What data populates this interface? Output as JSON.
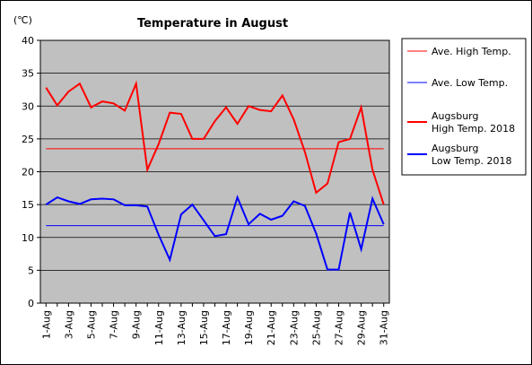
{
  "chart_data": {
    "type": "line",
    "title": "Temperature in August",
    "unit_label": "(℃)",
    "ylim": [
      0,
      40
    ],
    "y_ticks": [
      0,
      5,
      10,
      15,
      20,
      25,
      30,
      35,
      40
    ],
    "categories": [
      "1-Aug",
      "2-Aug",
      "3-Aug",
      "4-Aug",
      "5-Aug",
      "6-Aug",
      "7-Aug",
      "8-Aug",
      "9-Aug",
      "10-Aug",
      "11-Aug",
      "12-Aug",
      "13-Aug",
      "14-Aug",
      "15-Aug",
      "16-Aug",
      "17-Aug",
      "18-Aug",
      "19-Aug",
      "20-Aug",
      "21-Aug",
      "22-Aug",
      "23-Aug",
      "24-Aug",
      "25-Aug",
      "26-Aug",
      "27-Aug",
      "28-Aug",
      "29-Aug",
      "30-Aug",
      "31-Aug"
    ],
    "x_tick_labels": [
      "1-Aug",
      "3-Aug",
      "5-Aug",
      "7-Aug",
      "9-Aug",
      "11-Aug",
      "13-Aug",
      "15-Aug",
      "17-Aug",
      "19-Aug",
      "21-Aug",
      "23-Aug",
      "25-Aug",
      "27-Aug",
      "29-Aug",
      "31-Aug"
    ],
    "grid": "horizontal",
    "legend_position": "right",
    "series": [
      {
        "name": "Ave. High Temp.",
        "color": "#ff0000",
        "width": "thin",
        "values": [
          23.5,
          23.5,
          23.5,
          23.5,
          23.5,
          23.5,
          23.5,
          23.5,
          23.5,
          23.5,
          23.5,
          23.5,
          23.5,
          23.5,
          23.5,
          23.5,
          23.5,
          23.5,
          23.5,
          23.5,
          23.5,
          23.5,
          23.5,
          23.5,
          23.5,
          23.5,
          23.5,
          23.5,
          23.5,
          23.5,
          23.5
        ]
      },
      {
        "name": "Ave. Low Temp.",
        "color": "#0000ff",
        "width": "thin",
        "values": [
          11.8,
          11.8,
          11.8,
          11.8,
          11.8,
          11.8,
          11.8,
          11.8,
          11.8,
          11.8,
          11.8,
          11.8,
          11.8,
          11.8,
          11.8,
          11.8,
          11.8,
          11.8,
          11.8,
          11.8,
          11.8,
          11.8,
          11.8,
          11.8,
          11.8,
          11.8,
          11.8,
          11.8,
          11.8,
          11.8,
          11.8
        ]
      },
      {
        "name": "Augsburg High Temp. 2018",
        "legend_lines": [
          "Augsburg",
          "High Temp. 2018"
        ],
        "color": "#ff0000",
        "width": "thick",
        "values": [
          32.8,
          30.1,
          32.2,
          33.4,
          29.8,
          30.7,
          30.4,
          29.3,
          33.4,
          20.3,
          24.2,
          29.0,
          28.8,
          25.0,
          25.0,
          27.7,
          29.8,
          27.3,
          30.0,
          29.4,
          29.2,
          31.6,
          28.0,
          23.0,
          16.8,
          18.2,
          24.5,
          25.0,
          29.8,
          20.3,
          15.0
        ]
      },
      {
        "name": "Augsburg Low Temp. 2018",
        "legend_lines": [
          "Augsburg",
          "Low Temp. 2018"
        ],
        "color": "#0000ff",
        "width": "thick",
        "values": [
          15.0,
          16.1,
          15.5,
          15.1,
          15.8,
          15.9,
          15.8,
          14.9,
          14.9,
          14.7,
          10.4,
          6.6,
          13.5,
          15.0,
          12.6,
          10.2,
          10.5,
          16.1,
          12.0,
          13.6,
          12.7,
          13.3,
          15.5,
          14.8,
          10.6,
          5.1,
          5.1,
          13.8,
          8.2,
          15.9,
          12.0
        ]
      }
    ]
  }
}
